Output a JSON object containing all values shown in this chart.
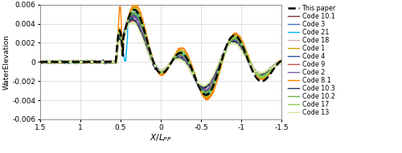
{
  "title": "",
  "xlabel": "$X/L_{PP}$",
  "ylabel": "WaterElevation",
  "xlim": [
    1.5,
    -1.5
  ],
  "ylim": [
    -0.006,
    0.006
  ],
  "xticks": [
    1.5,
    1.0,
    0.5,
    0,
    -0.5,
    -1.0,
    -1.5
  ],
  "yticks": [
    -0.006,
    -0.004,
    -0.002,
    0,
    0.002,
    0.004,
    0.006
  ],
  "legend_entries": [
    "This paper",
    "Code 10.1",
    "Code 3",
    "Code 21",
    "Code 18",
    "Code 1",
    "Code 4",
    "Code 9",
    "Code 2",
    "Code 8.1",
    "Code 10.3",
    "Code 10.2",
    "Code 17",
    "Code 13"
  ],
  "line_colors": [
    "#000000",
    "#7B3030",
    "#4472C4",
    "#00B0F0",
    "#D9B0B0",
    "#C8A000",
    "#2F5596",
    "#C0504D",
    "#7F60A6",
    "#FF8000",
    "#1F3864",
    "#70AD47",
    "#92D050",
    "#D4E6A0"
  ],
  "line_styles": [
    "--",
    "-",
    "-",
    "-",
    "-",
    "-",
    "-",
    "-",
    "-",
    "-",
    "-",
    "-",
    "-",
    "-"
  ],
  "line_widths": [
    1.8,
    1.0,
    1.0,
    1.0,
    1.0,
    1.0,
    1.0,
    1.0,
    1.0,
    1.0,
    1.0,
    1.0,
    1.0,
    1.0
  ],
  "figsize": [
    5.0,
    1.91
  ],
  "dpi": 100
}
